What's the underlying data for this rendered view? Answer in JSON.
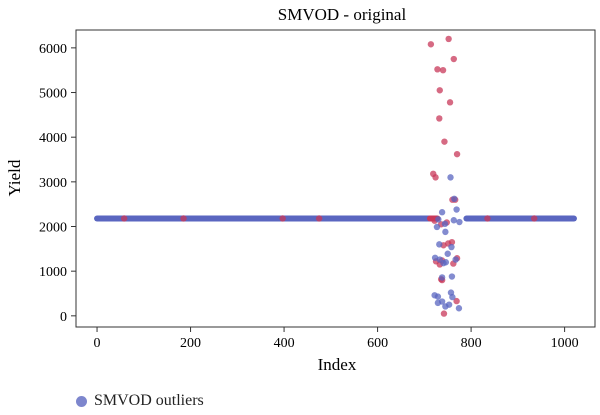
{
  "chart_data": {
    "type": "scatter",
    "title": "SMVOD - original",
    "xlabel": "Index",
    "ylabel": "Yield",
    "xlim": [
      -45,
      1065
    ],
    "ylim": [
      -250,
      6400
    ],
    "xticks": [
      0,
      200,
      400,
      600,
      800,
      1000
    ],
    "yticks": [
      0,
      1000,
      2000,
      3000,
      4000,
      5000,
      6000
    ],
    "grid": false,
    "legend_position": "bottom-left",
    "colors": {
      "original": "#c8385a",
      "outliers": "#5a66c0"
    },
    "baseline": {
      "value": 2180,
      "x_start": 0,
      "x_end": 1020,
      "gap": [
        712,
        790
      ],
      "segment_x": [
        712,
        728
      ]
    },
    "series": [
      {
        "name": "",
        "role": "original",
        "points": [
          [
            58,
            2180
          ],
          [
            185,
            2180
          ],
          [
            397,
            2180
          ],
          [
            475,
            2180
          ],
          [
            835,
            2180
          ],
          [
            935,
            2180
          ],
          [
            714,
            6080
          ],
          [
            752,
            6200
          ],
          [
            763,
            5750
          ],
          [
            728,
            5520
          ],
          [
            740,
            5500
          ],
          [
            733,
            5050
          ],
          [
            755,
            4780
          ],
          [
            732,
            4420
          ],
          [
            743,
            3900
          ],
          [
            770,
            3620
          ],
          [
            719,
            3180
          ],
          [
            724,
            3100
          ],
          [
            760,
            2600
          ],
          [
            766,
            2600
          ],
          [
            722,
            2130
          ],
          [
            736,
            2050
          ],
          [
            748,
            2090
          ],
          [
            759,
            1650
          ],
          [
            751,
            1620
          ],
          [
            741,
            1580
          ],
          [
            725,
            1220
          ],
          [
            738,
            1240
          ],
          [
            733,
            1150
          ],
          [
            770,
            1290
          ],
          [
            762,
            1170
          ],
          [
            736,
            820
          ],
          [
            738,
            800
          ],
          [
            769,
            330
          ],
          [
            742,
            50
          ]
        ]
      },
      {
        "name": "SMVOD outliers",
        "role": "outliers",
        "points": [
          [
            756,
            3100
          ],
          [
            764,
            2620
          ],
          [
            769,
            2380
          ],
          [
            738,
            2320
          ],
          [
            730,
            2160
          ],
          [
            744,
            2060
          ],
          [
            775,
            2100
          ],
          [
            763,
            2140
          ],
          [
            727,
            1990
          ],
          [
            745,
            1880
          ],
          [
            732,
            1600
          ],
          [
            758,
            1540
          ],
          [
            750,
            1390
          ],
          [
            723,
            1300
          ],
          [
            733,
            1260
          ],
          [
            741,
            1180
          ],
          [
            746,
            1200
          ],
          [
            767,
            1260
          ],
          [
            738,
            860
          ],
          [
            759,
            880
          ],
          [
            722,
            460
          ],
          [
            729,
            430
          ],
          [
            757,
            520
          ],
          [
            760,
            420
          ],
          [
            738,
            320
          ],
          [
            753,
            250
          ],
          [
            745,
            210
          ],
          [
            774,
            170
          ],
          [
            729,
            290
          ]
        ]
      }
    ]
  }
}
